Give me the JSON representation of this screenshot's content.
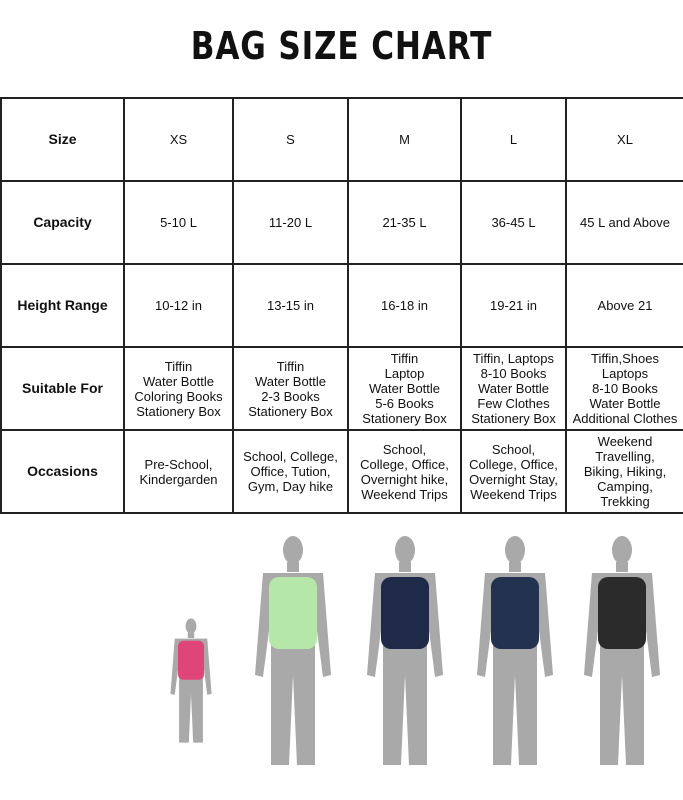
{
  "title": "BAG SIZE CHART",
  "rows": [
    {
      "label": "Size",
      "cells": [
        "XS",
        "S",
        "M",
        "L",
        "XL"
      ]
    },
    {
      "label": "Capacity",
      "cells": [
        "5-10 L",
        "11-20 L",
        "21-35 L",
        "36-45 L",
        "45 L and Above"
      ]
    },
    {
      "label": "Height Range",
      "cells": [
        "10-12 in",
        "13-15 in",
        "16-18 in",
        "19-21 in",
        "Above 21"
      ]
    },
    {
      "label": "Suitable For",
      "cells": [
        "Tiffin\nWater Bottle\nColoring Books\nStationery Box",
        "Tiffin\nWater Bottle\n2-3 Books\nStationery Box",
        "Tiffin\nLaptop\nWater Bottle\n5-6 Books\nStationery Box",
        "Tiffin, Laptops\n8-10 Books\nWater Bottle\nFew Clothes\nStationery Box",
        "Tiffin,Shoes\nLaptops\n8-10 Books\nWater Bottle\nAdditional Clothes"
      ]
    },
    {
      "label": "Occasions",
      "cells": [
        "Pre-School,\nKindergarden",
        "School, College,\nOffice, Tution,\nGym, Day hike",
        "School,\nCollege, Office,\nOvernight hike,\nWeekend Trips",
        "School,\nCollege, Office,\nOvernight Stay,\nWeekend Trips",
        "Weekend\nTravelling,\nBiking, Hiking,\nCamping,\nTrekking"
      ]
    }
  ],
  "figures": [
    {
      "size": "XS",
      "bag_color": "#e0457a"
    },
    {
      "size": "S",
      "bag_color": "#b5e8a8"
    },
    {
      "size": "M",
      "bag_color": "#1f2a48"
    },
    {
      "size": "L",
      "bag_color": "#22324f"
    },
    {
      "size": "XL",
      "bag_color": "#2b2b2b"
    }
  ],
  "colors": {
    "silhouette": "#a9a9a9",
    "border": "#222222"
  }
}
